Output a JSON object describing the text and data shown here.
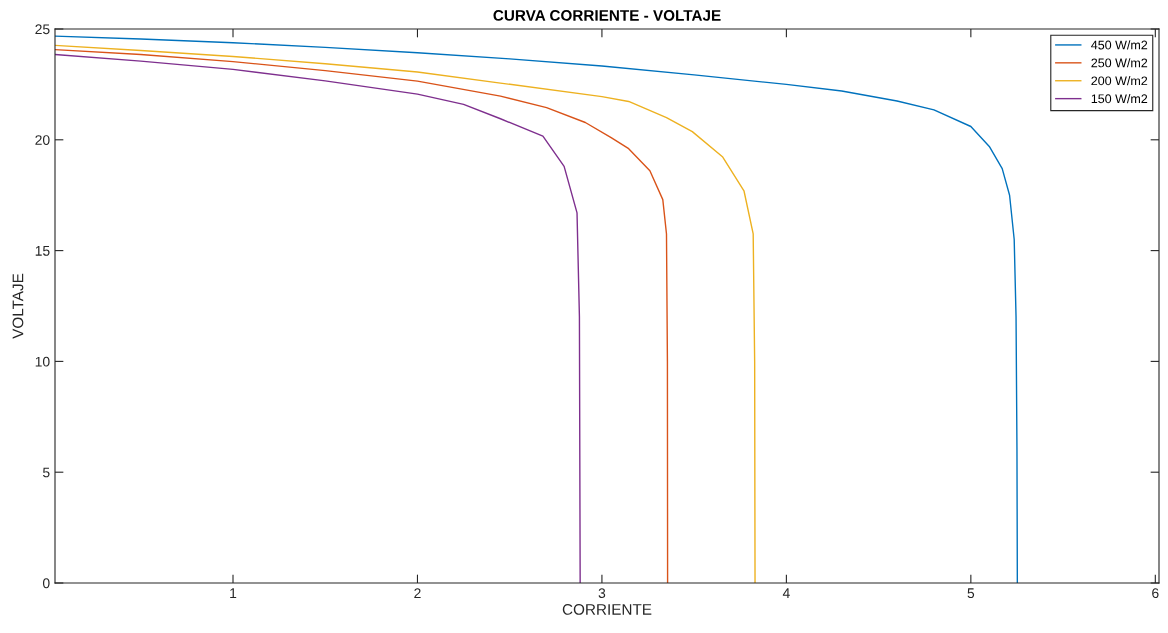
{
  "chart_data": {
    "type": "line",
    "title": "CURVA CORRIENTE - VOLTAJE",
    "xlabel": "CORRIENTE",
    "ylabel": "VOLTAJE",
    "xlim": [
      0.035,
      6.02
    ],
    "xticks": [
      1,
      2,
      3,
      4,
      5,
      6
    ],
    "ylim": [
      0,
      25
    ],
    "yticks": [
      0,
      5,
      10,
      15,
      20,
      25
    ],
    "grid": false,
    "legend": "top right",
    "marker": "none",
    "line_style": "solid",
    "series": [
      {
        "name": "450 W/m2",
        "color": "#0072bd",
        "x": [
          0.035,
          0.5,
          1,
          1.5,
          2,
          2.5,
          3,
          3.5,
          4,
          4.3,
          4.6,
          4.8,
          5.0,
          5.1,
          5.17,
          5.21,
          5.235,
          5.245,
          5.25,
          5.252
        ],
        "values": [
          24.68,
          24.55,
          24.38,
          24.17,
          23.93,
          23.65,
          23.33,
          22.93,
          22.5,
          22.2,
          21.75,
          21.35,
          20.6,
          19.7,
          18.7,
          17.5,
          15.5,
          12,
          6,
          0
        ]
      },
      {
        "name": "250 W/m2",
        "color": "#d95319",
        "x": [
          0.035,
          0.5,
          1,
          1.5,
          2,
          2.45,
          2.7,
          2.91,
          3.05,
          3.145,
          3.26,
          3.33,
          3.35,
          3.355,
          3.356
        ],
        "values": [
          24.07,
          23.85,
          23.53,
          23.12,
          22.65,
          21.97,
          21.45,
          20.78,
          20.1,
          19.6,
          18.6,
          17.3,
          15.75,
          10,
          0
        ]
      },
      {
        "name": "200 W/m2",
        "color": "#edb120",
        "x": [
          0.035,
          0.5,
          1,
          1.5,
          2,
          2.45,
          3.0,
          3.145,
          3.35,
          3.49,
          3.655,
          3.77,
          3.82,
          3.828,
          3.83
        ],
        "values": [
          24.26,
          24.03,
          23.76,
          23.43,
          23.06,
          22.56,
          21.95,
          21.73,
          21.0,
          20.37,
          19.22,
          17.7,
          15.75,
          10,
          0
        ]
      },
      {
        "name": "150 W/m2",
        "color": "#7e2f8e",
        "x": [
          0.035,
          0.5,
          1,
          1.5,
          2,
          2.25,
          2.45,
          2.68,
          2.795,
          2.865,
          2.878,
          2.882
        ],
        "values": [
          23.85,
          23.55,
          23.18,
          22.66,
          22.06,
          21.6,
          20.95,
          20.17,
          18.8,
          16.7,
          12,
          0
        ]
      }
    ]
  }
}
